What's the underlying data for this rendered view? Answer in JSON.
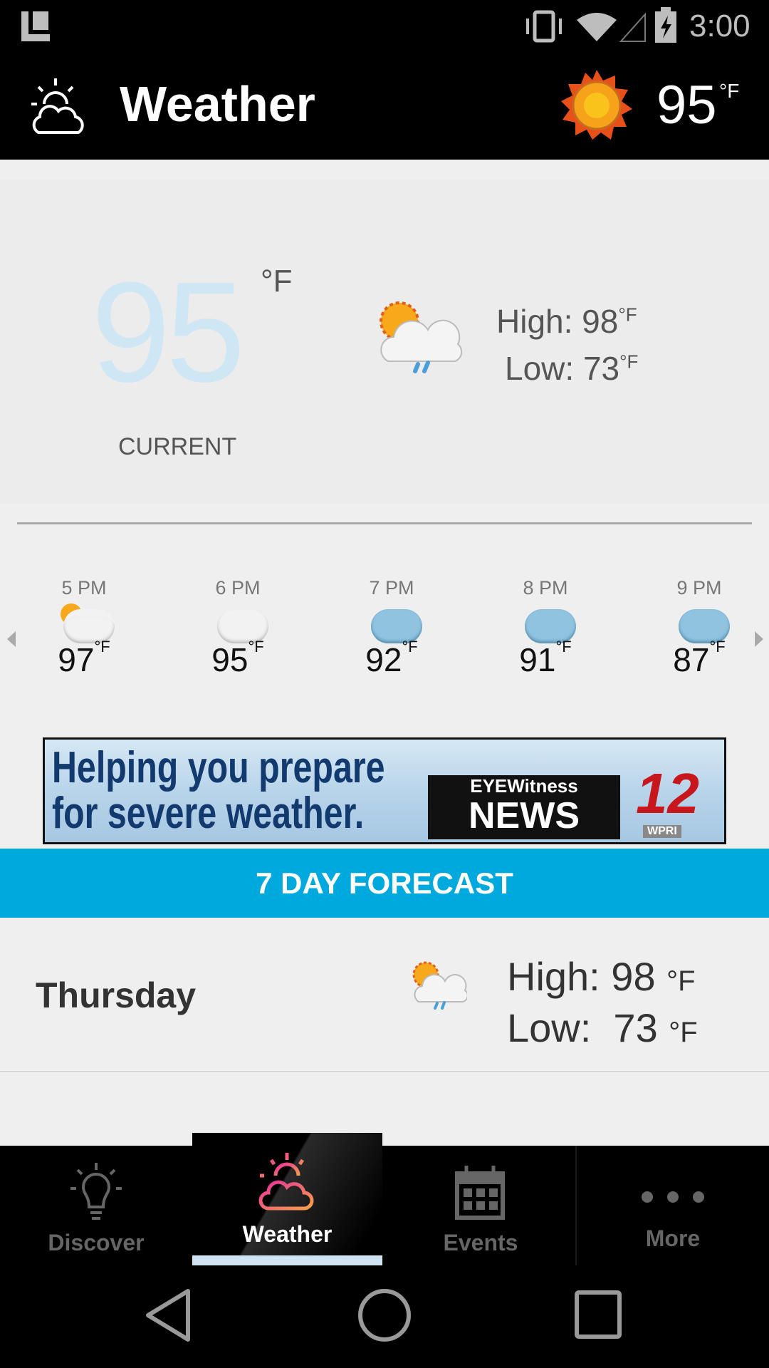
{
  "status_bar": {
    "time": "3:00",
    "icons": [
      "launcher-icon",
      "vibrate-icon",
      "wifi-icon",
      "signal-icon",
      "battery-charging-icon"
    ]
  },
  "header": {
    "title": "Weather",
    "temp": "95",
    "unit": "°F",
    "icon": "partly-cloudy-icon",
    "temp_icon": "sun-icon"
  },
  "current": {
    "temp": "95",
    "unit": "°F",
    "label": "CURRENT",
    "icon": "sun-cloud-rain-icon",
    "high_label": "High: 98",
    "low_label": "Low: 73",
    "unit_small": "°F"
  },
  "hourly": [
    {
      "time": "5 PM",
      "temp": "97",
      "unit": "°F",
      "icon": "partly-sunny-icon"
    },
    {
      "time": "6 PM",
      "temp": "95",
      "unit": "°F",
      "icon": "partly-sunny-icon"
    },
    {
      "time": "7 PM",
      "temp": "92",
      "unit": "°F",
      "icon": "moon-cloud-icon"
    },
    {
      "time": "8 PM",
      "temp": "91",
      "unit": "°F",
      "icon": "moon-cloud-icon"
    },
    {
      "time": "9 PM",
      "temp": "87",
      "unit": "°F",
      "icon": "moon-cloud-rain-icon"
    }
  ],
  "banner": {
    "line1": "Helping you prepare",
    "line2": "for severe weather.",
    "brand1": "EYEWitness",
    "brand2": "NEWS",
    "channel": "12",
    "call": "WPRI"
  },
  "forecast": {
    "title": "7 DAY FORECAST",
    "days": [
      {
        "day": "Thursday",
        "high_label": "High:",
        "high": "98",
        "low_label": "Low:",
        "low": "73",
        "unit": "°F",
        "icon": "sun-cloud-rain-icon"
      }
    ]
  },
  "nav": {
    "tabs": [
      {
        "label": "Discover"
      },
      {
        "label": "Weather"
      },
      {
        "label": "Events"
      },
      {
        "label": "More"
      }
    ],
    "active": "Weather",
    "active_color": "#cfe3f2"
  },
  "colors": {
    "accent": "#00a9dd",
    "current_temp": "#cfe6f5"
  }
}
